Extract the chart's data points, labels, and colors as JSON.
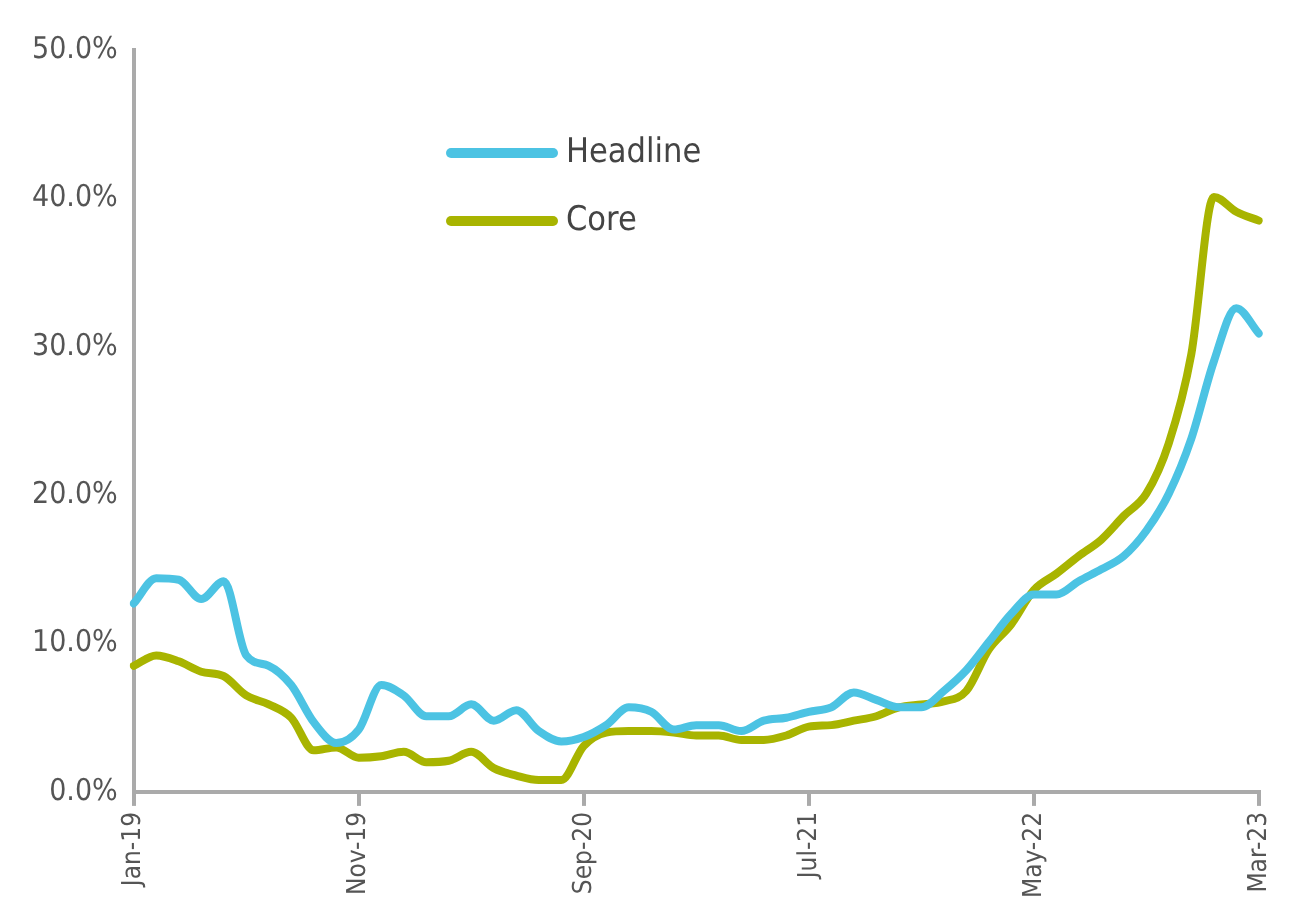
{
  "chart_data": {
    "type": "line",
    "categories": [
      "Jan-19",
      null,
      null,
      null,
      null,
      null,
      null,
      null,
      null,
      null,
      "Nov-19",
      null,
      null,
      null,
      null,
      null,
      null,
      null,
      null,
      null,
      "Sep-20",
      null,
      null,
      null,
      null,
      null,
      null,
      null,
      null,
      null,
      "Jul-21",
      null,
      null,
      null,
      null,
      null,
      null,
      null,
      null,
      null,
      "May-22",
      null,
      null,
      null,
      null,
      null,
      null,
      null,
      null,
      null,
      "Mar-23"
    ],
    "series": [
      {
        "name": "Headline",
        "color": "#4cc3e3",
        "values": [
          12.7,
          14.4,
          14.3,
          13.0,
          14.2,
          9.2,
          8.5,
          7.2,
          4.7,
          3.3,
          4.2,
          7.2,
          6.5,
          5.1,
          5.1,
          5.9,
          4.8,
          5.5,
          4.1,
          3.4,
          3.7,
          4.5,
          5.7,
          5.4,
          4.2,
          4.5,
          4.5,
          4.1,
          4.8,
          5.0,
          5.4,
          5.7,
          6.7,
          6.2,
          5.7,
          5.7,
          6.8,
          8.2,
          10.1,
          12.0,
          13.3,
          13.3,
          14.2,
          15.0,
          15.9,
          17.6,
          20.1,
          23.8,
          29.0,
          32.6,
          30.9
        ]
      },
      {
        "name": "Core",
        "color": "#a8b400",
        "values": [
          8.5,
          9.2,
          8.8,
          8.1,
          7.8,
          6.5,
          5.9,
          5.0,
          2.8,
          3.0,
          2.3,
          2.4,
          2.7,
          2.0,
          2.1,
          2.7,
          1.6,
          1.1,
          0.8,
          0.8,
          3.1,
          4.0,
          4.1,
          4.1,
          4.0,
          3.8,
          3.8,
          3.5,
          3.5,
          3.8,
          4.4,
          4.5,
          4.8,
          5.1,
          5.7,
          5.9,
          6.1,
          6.8,
          9.6,
          11.3,
          13.6,
          14.7,
          15.9,
          17.0,
          18.6,
          20.1,
          23.5,
          29.5,
          40.1,
          39.1,
          38.5
        ]
      }
    ],
    "ylim": [
      0,
      50
    ],
    "yticks": [
      {
        "value": 0,
        "label": "0.0%"
      },
      {
        "value": 10,
        "label": "10.0%"
      },
      {
        "value": 20,
        "label": "20.0%"
      },
      {
        "value": 30,
        "label": "30.0%"
      },
      {
        "value": 40,
        "label": "40.0%"
      },
      {
        "value": 50,
        "label": "50.0%"
      }
    ],
    "grid": false,
    "legend": "top left",
    "marker": "none",
    "line_style": "solid"
  }
}
